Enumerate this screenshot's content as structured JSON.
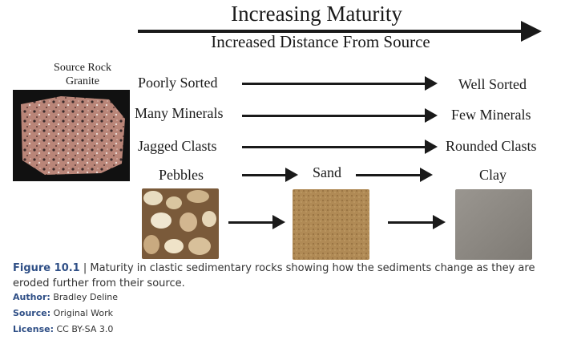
{
  "header": {
    "title": "Increasing Maturity",
    "subtitle": "Increased Distance From Source"
  },
  "source": {
    "line1": "Source Rock",
    "line2": "Granite"
  },
  "rows": [
    {
      "left": "Poorly Sorted",
      "right": "Well Sorted"
    },
    {
      "left": "Many Minerals",
      "right": "Few Minerals"
    },
    {
      "left": "Jagged Clasts",
      "right": "Rounded Clasts"
    }
  ],
  "grain": {
    "pebbles": "Pebbles",
    "sand": "Sand",
    "clay": "Clay"
  },
  "caption": {
    "figure": "Figure 10.1",
    "separator": " | ",
    "text": "Maturity in clastic sedimentary rocks showing how the sediments change as they are eroded further from their source."
  },
  "meta": {
    "author_label": "Author:",
    "author": "Bradley Deline",
    "source_label": "Source:",
    "source": "Original Work",
    "license_label": "License:",
    "license": "CC BY-SA 3.0"
  }
}
